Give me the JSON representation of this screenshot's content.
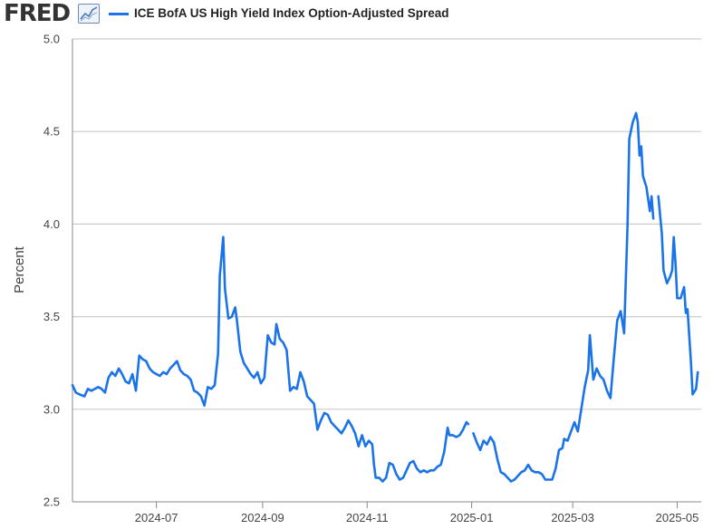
{
  "header": {
    "logo_text": "FRED",
    "logo_icon": "line-chart-icon",
    "series_label": "ICE BofA US High Yield Index Option-Adjusted Spread"
  },
  "colors": {
    "series": "#1a73e8",
    "grid": "#cccccc",
    "axis": "#888888",
    "text": "#444444"
  },
  "chart_data": {
    "type": "line",
    "title": "",
    "ylabel": "Percent",
    "xlabel": "",
    "ylim": [
      2.5,
      5.0
    ],
    "yticks": [
      "2.5",
      "3.0",
      "3.5",
      "4.0",
      "4.5",
      "5.0"
    ],
    "grid": true,
    "x_range": [
      "2024-05-13",
      "2025-05-15"
    ],
    "xticks": [
      {
        "date": "2024-07-01",
        "label": "2024-07"
      },
      {
        "date": "2024-09-01",
        "label": "2024-09"
      },
      {
        "date": "2024-11-01",
        "label": "2024-11"
      },
      {
        "date": "2025-01-01",
        "label": "2025-01"
      },
      {
        "date": "2025-03-01",
        "label": "2025-03"
      },
      {
        "date": "2025-05-01",
        "label": "2025-05"
      }
    ],
    "series": [
      {
        "name": "ICE BofA US High Yield Index Option-Adjusted Spread",
        "segments": [
          [
            [
              "2024-05-13",
              3.13
            ],
            [
              "2024-05-15",
              3.09
            ],
            [
              "2024-05-17",
              3.08
            ],
            [
              "2024-05-20",
              3.07
            ],
            [
              "2024-05-22",
              3.11
            ],
            [
              "2024-05-24",
              3.1
            ],
            [
              "2024-05-28",
              3.12
            ],
            [
              "2024-05-30",
              3.11
            ],
            [
              "2024-06-01",
              3.09
            ],
            [
              "2024-06-03",
              3.17
            ],
            [
              "2024-06-05",
              3.2
            ],
            [
              "2024-06-07",
              3.18
            ],
            [
              "2024-06-09",
              3.22
            ],
            [
              "2024-06-11",
              3.19
            ],
            [
              "2024-06-13",
              3.15
            ],
            [
              "2024-06-15",
              3.14
            ],
            [
              "2024-06-17",
              3.19
            ],
            [
              "2024-06-19",
              3.1
            ],
            [
              "2024-06-21",
              3.29
            ],
            [
              "2024-06-23",
              3.27
            ],
            [
              "2024-06-25",
              3.26
            ],
            [
              "2024-06-27",
              3.22
            ],
            [
              "2024-06-29",
              3.2
            ],
            [
              "2024-07-01",
              3.19
            ],
            [
              "2024-07-03",
              3.18
            ],
            [
              "2024-07-05",
              3.2
            ],
            [
              "2024-07-07",
              3.19
            ],
            [
              "2024-07-09",
              3.22
            ],
            [
              "2024-07-11",
              3.24
            ],
            [
              "2024-07-13",
              3.26
            ],
            [
              "2024-07-15",
              3.21
            ],
            [
              "2024-07-17",
              3.19
            ],
            [
              "2024-07-19",
              3.18
            ],
            [
              "2024-07-21",
              3.16
            ],
            [
              "2024-07-23",
              3.1
            ],
            [
              "2024-07-25",
              3.09
            ],
            [
              "2024-07-27",
              3.07
            ],
            [
              "2024-07-29",
              3.02
            ],
            [
              "2024-07-31",
              3.12
            ],
            [
              "2024-08-02",
              3.11
            ],
            [
              "2024-08-04",
              3.13
            ],
            [
              "2024-08-06",
              3.3
            ],
            [
              "2024-08-07",
              3.72
            ],
            [
              "2024-08-09",
              3.93
            ],
            [
              "2024-08-10",
              3.65
            ],
            [
              "2024-08-12",
              3.49
            ],
            [
              "2024-08-14",
              3.5
            ],
            [
              "2024-08-16",
              3.55
            ],
            [
              "2024-08-17",
              3.48
            ],
            [
              "2024-08-19",
              3.31
            ],
            [
              "2024-08-21",
              3.25
            ],
            [
              "2024-08-23",
              3.22
            ],
            [
              "2024-08-25",
              3.19
            ],
            [
              "2024-08-27",
              3.17
            ],
            [
              "2024-08-29",
              3.2
            ],
            [
              "2024-08-31",
              3.14
            ],
            [
              "2024-09-02",
              3.17
            ],
            [
              "2024-09-04",
              3.4
            ],
            [
              "2024-09-06",
              3.36
            ],
            [
              "2024-09-08",
              3.35
            ],
            [
              "2024-09-09",
              3.46
            ],
            [
              "2024-09-11",
              3.38
            ],
            [
              "2024-09-13",
              3.36
            ],
            [
              "2024-09-15",
              3.32
            ],
            [
              "2024-09-17",
              3.1
            ],
            [
              "2024-09-19",
              3.12
            ],
            [
              "2024-09-21",
              3.11
            ],
            [
              "2024-09-23",
              3.2
            ],
            [
              "2024-09-25",
              3.15
            ],
            [
              "2024-09-27",
              3.07
            ],
            [
              "2024-09-29",
              3.05
            ],
            [
              "2024-10-01",
              3.03
            ],
            [
              "2024-10-03",
              2.89
            ],
            [
              "2024-10-05",
              2.94
            ],
            [
              "2024-10-07",
              2.98
            ],
            [
              "2024-10-09",
              2.97
            ],
            [
              "2024-10-11",
              2.93
            ],
            [
              "2024-10-13",
              2.91
            ],
            [
              "2024-10-15",
              2.89
            ],
            [
              "2024-10-17",
              2.87
            ],
            [
              "2024-10-19",
              2.9
            ],
            [
              "2024-10-21",
              2.94
            ],
            [
              "2024-10-23",
              2.91
            ],
            [
              "2024-10-25",
              2.87
            ],
            [
              "2024-10-27",
              2.8
            ],
            [
              "2024-10-29",
              2.86
            ],
            [
              "2024-10-31",
              2.8
            ],
            [
              "2024-11-02",
              2.83
            ],
            [
              "2024-11-04",
              2.81
            ],
            [
              "2024-11-05",
              2.7
            ],
            [
              "2024-11-06",
              2.63
            ],
            [
              "2024-11-08",
              2.63
            ],
            [
              "2024-11-10",
              2.61
            ],
            [
              "2024-11-12",
              2.63
            ],
            [
              "2024-11-14",
              2.71
            ],
            [
              "2024-11-16",
              2.7
            ],
            [
              "2024-11-18",
              2.65
            ],
            [
              "2024-11-20",
              2.62
            ],
            [
              "2024-11-22",
              2.63
            ],
            [
              "2024-11-24",
              2.67
            ],
            [
              "2024-11-26",
              2.71
            ],
            [
              "2024-11-28",
              2.72
            ],
            [
              "2024-11-30",
              2.68
            ],
            [
              "2024-12-02",
              2.66
            ],
            [
              "2024-12-04",
              2.67
            ],
            [
              "2024-12-06",
              2.66
            ],
            [
              "2024-12-08",
              2.67
            ],
            [
              "2024-12-10",
              2.67
            ],
            [
              "2024-12-12",
              2.69
            ],
            [
              "2024-12-14",
              2.7
            ],
            [
              "2024-12-16",
              2.77
            ],
            [
              "2024-12-18",
              2.9
            ],
            [
              "2024-12-19",
              2.86
            ],
            [
              "2024-12-21",
              2.86
            ],
            [
              "2024-12-23",
              2.85
            ],
            [
              "2024-12-25",
              2.86
            ],
            [
              "2024-12-27",
              2.89
            ],
            [
              "2024-12-29",
              2.93
            ],
            [
              "2024-12-30",
              2.92
            ]
          ],
          [
            [
              "2025-01-02",
              2.87
            ],
            [
              "2025-01-04",
              2.82
            ],
            [
              "2025-01-06",
              2.78
            ],
            [
              "2025-01-08",
              2.83
            ],
            [
              "2025-01-10",
              2.81
            ],
            [
              "2025-01-12",
              2.85
            ],
            [
              "2025-01-14",
              2.82
            ],
            [
              "2025-01-16",
              2.73
            ],
            [
              "2025-01-18",
              2.66
            ],
            [
              "2025-01-20",
              2.65
            ],
            [
              "2025-01-22",
              2.63
            ],
            [
              "2025-01-24",
              2.61
            ],
            [
              "2025-01-26",
              2.62
            ],
            [
              "2025-01-28",
              2.64
            ],
            [
              "2025-01-30",
              2.66
            ],
            [
              "2025-02-01",
              2.67
            ],
            [
              "2025-02-03",
              2.7
            ],
            [
              "2025-02-05",
              2.67
            ],
            [
              "2025-02-07",
              2.66
            ],
            [
              "2025-02-09",
              2.66
            ],
            [
              "2025-02-11",
              2.65
            ],
            [
              "2025-02-13",
              2.62
            ],
            [
              "2025-02-15",
              2.62
            ],
            [
              "2025-02-17",
              2.62
            ],
            [
              "2025-02-19",
              2.68
            ],
            [
              "2025-02-21",
              2.78
            ],
            [
              "2025-02-23",
              2.79
            ],
            [
              "2025-02-24",
              2.84
            ],
            [
              "2025-02-26",
              2.83
            ],
            [
              "2025-02-28",
              2.88
            ],
            [
              "2025-03-02",
              2.93
            ],
            [
              "2025-03-04",
              2.88
            ],
            [
              "2025-03-06",
              3.0
            ],
            [
              "2025-03-08",
              3.12
            ],
            [
              "2025-03-10",
              3.21
            ],
            [
              "2025-03-11",
              3.4
            ],
            [
              "2025-03-13",
              3.16
            ],
            [
              "2025-03-15",
              3.22
            ],
            [
              "2025-03-17",
              3.18
            ],
            [
              "2025-03-19",
              3.16
            ],
            [
              "2025-03-21",
              3.1
            ],
            [
              "2025-03-23",
              3.06
            ],
            [
              "2025-03-25",
              3.28
            ],
            [
              "2025-03-27",
              3.48
            ],
            [
              "2025-03-29",
              3.53
            ],
            [
              "2025-03-31",
              3.41
            ],
            [
              "2025-04-02",
              4.0
            ],
            [
              "2025-04-03",
              4.46
            ],
            [
              "2025-04-05",
              4.55
            ],
            [
              "2025-04-07",
              4.6
            ],
            [
              "2025-04-08",
              4.55
            ],
            [
              "2025-04-09",
              4.37
            ],
            [
              "2025-04-10",
              4.42
            ],
            [
              "2025-04-11",
              4.26
            ],
            [
              "2025-04-13",
              4.2
            ],
            [
              "2025-04-15",
              4.07
            ],
            [
              "2025-04-16",
              4.15
            ],
            [
              "2025-04-17",
              4.03
            ]
          ],
          [
            [
              "2025-04-20",
              4.15
            ],
            [
              "2025-04-22",
              3.95
            ],
            [
              "2025-04-23",
              3.75
            ],
            [
              "2025-04-25",
              3.68
            ],
            [
              "2025-04-27",
              3.72
            ],
            [
              "2025-04-28",
              3.75
            ],
            [
              "2025-04-29",
              3.93
            ],
            [
              "2025-04-30",
              3.79
            ],
            [
              "2025-05-01",
              3.6
            ],
            [
              "2025-05-03",
              3.6
            ],
            [
              "2025-05-05",
              3.66
            ],
            [
              "2025-05-06",
              3.52
            ],
            [
              "2025-05-07",
              3.54
            ],
            [
              "2025-05-09",
              3.25
            ],
            [
              "2025-05-10",
              3.08
            ],
            [
              "2025-05-12",
              3.11
            ],
            [
              "2025-05-13",
              3.2
            ]
          ]
        ]
      }
    ]
  }
}
